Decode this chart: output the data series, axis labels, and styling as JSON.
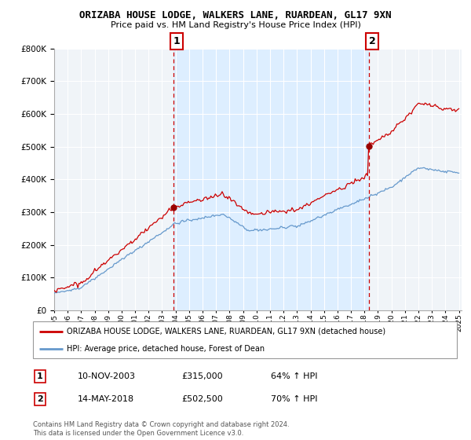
{
  "title": "ORIZABA HOUSE LODGE, WALKERS LANE, RUARDEAN, GL17 9XN",
  "subtitle": "Price paid vs. HM Land Registry's House Price Index (HPI)",
  "legend_line1": "ORIZABA HOUSE LODGE, WALKERS LANE, RUARDEAN, GL17 9XN (detached house)",
  "legend_line2": "HPI: Average price, detached house, Forest of Dean",
  "sale1_date": "10-NOV-2003",
  "sale1_price": "£315,000",
  "sale1_hpi": "64% ↑ HPI",
  "sale2_date": "14-MAY-2018",
  "sale2_price": "£502,500",
  "sale2_hpi": "70% ↑ HPI",
  "footnote": "Contains HM Land Registry data © Crown copyright and database right 2024.\nThis data is licensed under the Open Government Licence v3.0.",
  "red_color": "#cc0000",
  "blue_color": "#6699cc",
  "shade_color": "#ddeeff",
  "dot_color": "#990000",
  "ylim": [
    0,
    800000
  ],
  "yticks": [
    0,
    100000,
    200000,
    300000,
    400000,
    500000,
    600000,
    700000,
    800000
  ],
  "background_color": "#ffffff",
  "plot_bg_color": "#f0f4f8"
}
